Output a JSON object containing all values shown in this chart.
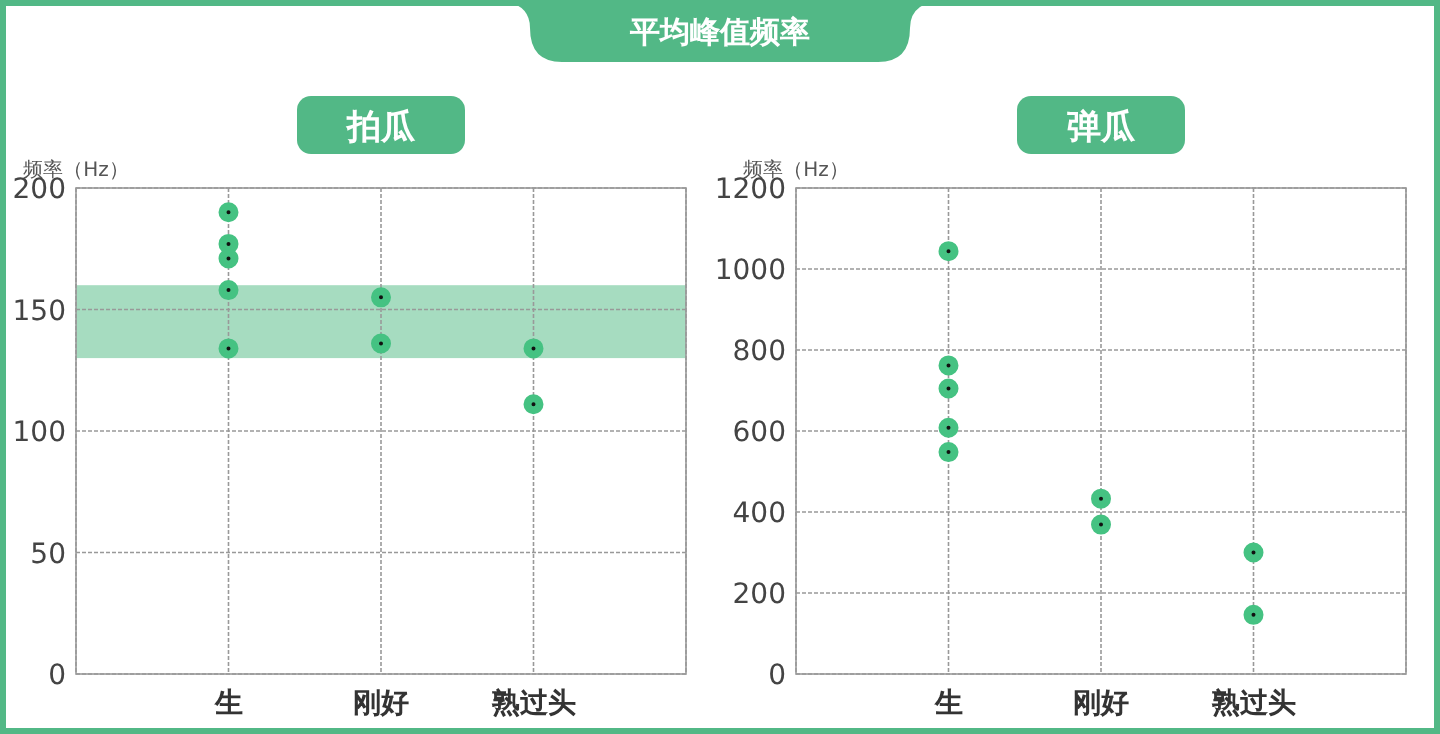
{
  "chart_data": [
    {
      "type": "scatter",
      "title": "平均峰值频率",
      "subtitle": "拍瓜",
      "ylabel": "频率（Hz）",
      "categories": [
        "生",
        "刚好",
        "熟过头"
      ],
      "ylim": [
        0,
        200
      ],
      "yticks": [
        0,
        50,
        100,
        150,
        200
      ],
      "grid": true,
      "marker": "circle",
      "bands": [
        {
          "axis": "y",
          "from": 130,
          "to": 160,
          "color": "#a6dcc0"
        }
      ],
      "series": [
        {
          "color": "#45c282",
          "x": [
            "生",
            "生",
            "生",
            "生",
            "生",
            "刚好",
            "刚好",
            "熟过头",
            "熟过头"
          ],
          "values": [
            190,
            177,
            171,
            158,
            134,
            155,
            136,
            134,
            111
          ]
        }
      ]
    },
    {
      "type": "scatter",
      "subtitle": "弹瓜",
      "ylabel": "频率（Hz）",
      "categories": [
        "生",
        "刚好",
        "熟过头"
      ],
      "ylim": [
        0,
        1200
      ],
      "yticks": [
        0,
        200,
        400,
        600,
        800,
        1000,
        1200
      ],
      "grid": true,
      "marker": "circle",
      "series": [
        {
          "color": "#45c282",
          "x": [
            "生",
            "生",
            "生",
            "生",
            "生",
            "刚好",
            "刚好",
            "熟过头",
            "熟过头"
          ],
          "values": [
            1044,
            762,
            705,
            608,
            548,
            433,
            369,
            300,
            146
          ]
        }
      ]
    }
  ]
}
